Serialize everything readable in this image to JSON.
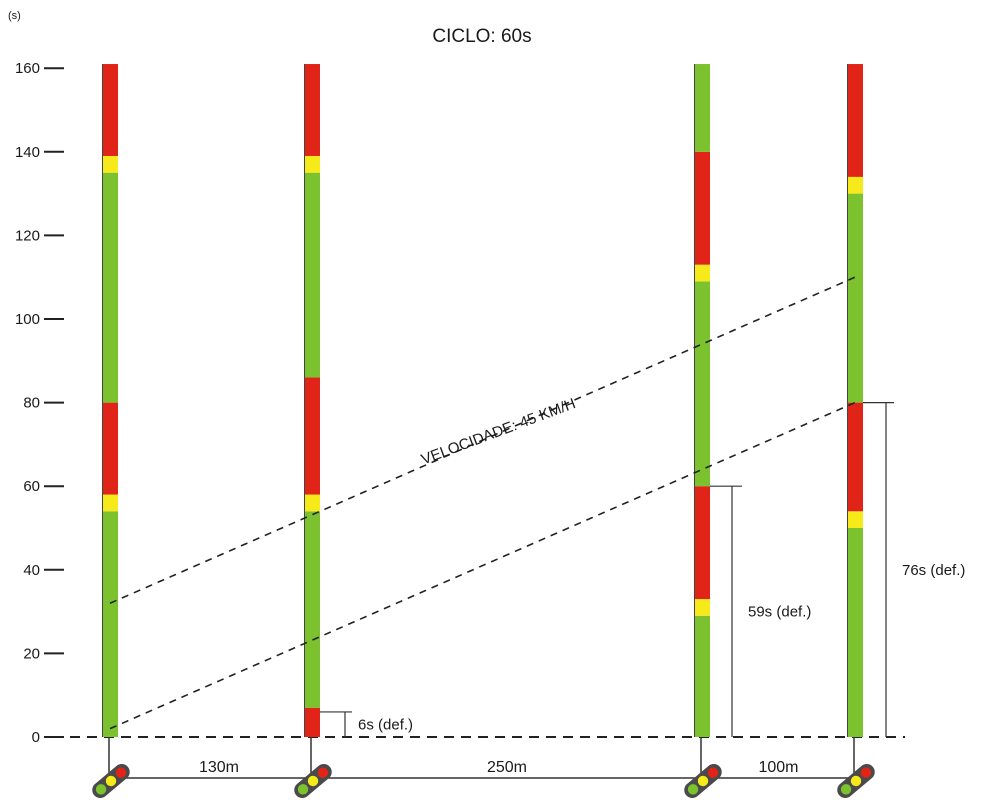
{
  "corner_label": "(s)",
  "title": "CICLO: 60s",
  "colors": {
    "red": "#e02418",
    "yellow": "#f6ea1a",
    "green": "#7cc22e"
  },
  "chart_data": {
    "type": "time-space diagram",
    "y_axis": {
      "ticks": [
        0,
        20,
        40,
        60,
        80,
        100,
        120,
        140,
        160
      ],
      "ylim": [
        0,
        160
      ]
    },
    "signals": [
      {
        "id": 1,
        "segments": [
          {
            "color": "green",
            "from": 0,
            "to": 54
          },
          {
            "color": "yellow",
            "from": 54,
            "to": 58
          },
          {
            "color": "red",
            "from": 58,
            "to": 80
          },
          {
            "color": "green",
            "from": 80,
            "to": 135
          },
          {
            "color": "yellow",
            "from": 135,
            "to": 139
          },
          {
            "color": "red",
            "from": 139,
            "to": 161
          }
        ]
      },
      {
        "id": 2,
        "segments": [
          {
            "color": "red",
            "from": 0,
            "to": 7
          },
          {
            "color": "green",
            "from": 7,
            "to": 54
          },
          {
            "color": "yellow",
            "from": 54,
            "to": 58
          },
          {
            "color": "red",
            "from": 58,
            "to": 86
          },
          {
            "color": "green",
            "from": 86,
            "to": 135
          },
          {
            "color": "yellow",
            "from": 135,
            "to": 139
          },
          {
            "color": "red",
            "from": 139,
            "to": 161
          }
        ]
      },
      {
        "id": 3,
        "segments": [
          {
            "color": "green",
            "from": 0,
            "to": 29
          },
          {
            "color": "yellow",
            "from": 29,
            "to": 33
          },
          {
            "color": "red",
            "from": 33,
            "to": 60
          },
          {
            "color": "green",
            "from": 60,
            "to": 109
          },
          {
            "color": "yellow",
            "from": 109,
            "to": 113
          },
          {
            "color": "red",
            "from": 113,
            "to": 140
          },
          {
            "color": "green",
            "from": 140,
            "to": 161
          }
        ]
      },
      {
        "id": 4,
        "segments": [
          {
            "color": "green",
            "from": 0,
            "to": 50
          },
          {
            "color": "yellow",
            "from": 50,
            "to": 54
          },
          {
            "color": "red",
            "from": 54,
            "to": 80
          },
          {
            "color": "green",
            "from": 80,
            "to": 130
          },
          {
            "color": "yellow",
            "from": 130,
            "to": 134
          },
          {
            "color": "red",
            "from": 134,
            "to": 161
          }
        ]
      }
    ],
    "distances": [
      "130m",
      "250m",
      "100m"
    ],
    "offsets": [
      {
        "label": "6s (def.)",
        "signal": 2,
        "from": 0,
        "to": 6
      },
      {
        "label": "59s (def.)",
        "signal": 3,
        "from": 0,
        "to": 60
      },
      {
        "label": "76s (def.)",
        "signal": 4,
        "from": 0,
        "to": 80
      }
    ],
    "bands": [
      {
        "start_signal": 1,
        "start_t": 32,
        "end_signal": 4,
        "end_t": 110
      },
      {
        "start_signal": 1,
        "start_t": 2,
        "end_signal": 4,
        "end_t": 80
      }
    ],
    "speed_label": "VELOCIDADE: 45 KM/H"
  }
}
